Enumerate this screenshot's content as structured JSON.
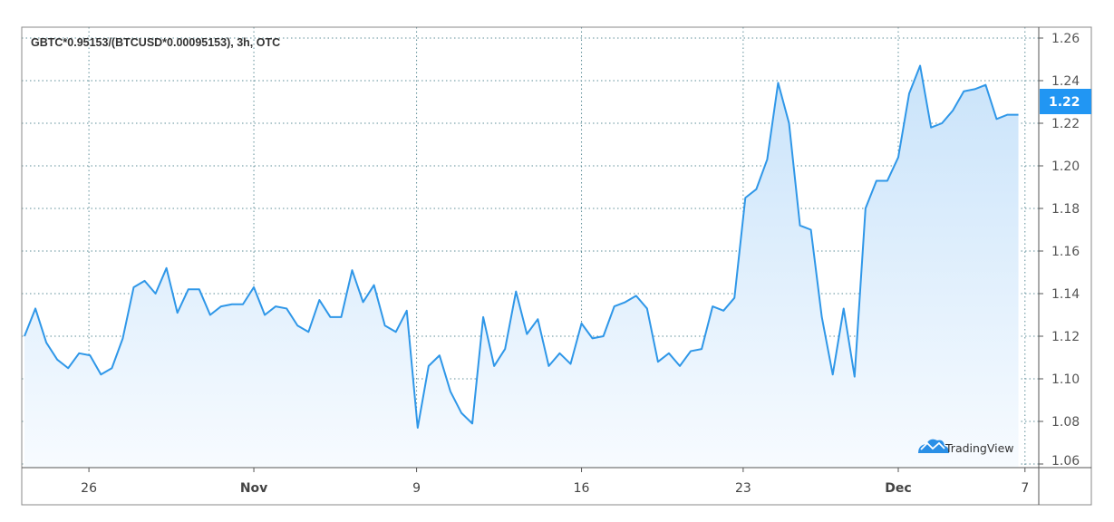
{
  "chart_data": {
    "type": "area",
    "title": "GBTC*0.95153/(BTCUSD*0.00095153), 3h, OTC",
    "xlabel": "",
    "ylabel": "",
    "ylim": [
      1.06,
      1.26
    ],
    "y_ticks": [
      "1.06",
      "1.08",
      "1.10",
      "1.12",
      "1.14",
      "1.16",
      "1.18",
      "1.20",
      "1.22",
      "1.24",
      "1.26"
    ],
    "x_ticks": [
      {
        "label": "26",
        "index": 5.9,
        "bold": false
      },
      {
        "label": "Nov",
        "index": 21.0,
        "bold": true
      },
      {
        "label": "9",
        "index": 35.9,
        "bold": false
      },
      {
        "label": "16",
        "index": 51.0,
        "bold": false
      },
      {
        "label": "23",
        "index": 65.8,
        "bold": false
      },
      {
        "label": "Dec",
        "index": 80.0,
        "bold": true
      },
      {
        "label": "7",
        "index": 91.6,
        "bold": false
      }
    ],
    "grid": true,
    "values": [
      1.12,
      1.133,
      1.117,
      1.109,
      1.105,
      1.112,
      1.111,
      1.102,
      1.105,
      1.119,
      1.143,
      1.146,
      1.14,
      1.152,
      1.131,
      1.142,
      1.142,
      1.13,
      1.134,
      1.135,
      1.135,
      1.143,
      1.13,
      1.134,
      1.133,
      1.125,
      1.122,
      1.137,
      1.129,
      1.129,
      1.151,
      1.136,
      1.144,
      1.125,
      1.122,
      1.132,
      1.077,
      1.106,
      1.111,
      1.094,
      1.084,
      1.079,
      1.129,
      1.106,
      1.114,
      1.141,
      1.121,
      1.128,
      1.106,
      1.112,
      1.107,
      1.126,
      1.119,
      1.12,
      1.134,
      1.136,
      1.139,
      1.133,
      1.108,
      1.112,
      1.106,
      1.113,
      1.114,
      1.134,
      1.132,
      1.138,
      1.185,
      1.189,
      1.203,
      1.239,
      1.22,
      1.172,
      1.17,
      1.129,
      1.102,
      1.133,
      1.101,
      1.18,
      1.193,
      1.193,
      1.204,
      1.234,
      1.247,
      1.218,
      1.22,
      1.226,
      1.235,
      1.236,
      1.238,
      1.222,
      1.224,
      1.224
    ],
    "last_value_label": "1.22",
    "colors": {
      "line": "#2f97e8",
      "fill_top": "#c9e3fa",
      "fill_bottom": "#f7fbff",
      "badge": "#2196f3",
      "grid": "#5f8f99"
    }
  },
  "watermark": {
    "text": "TradingView",
    "icon": "tradingview-cloud-icon"
  }
}
